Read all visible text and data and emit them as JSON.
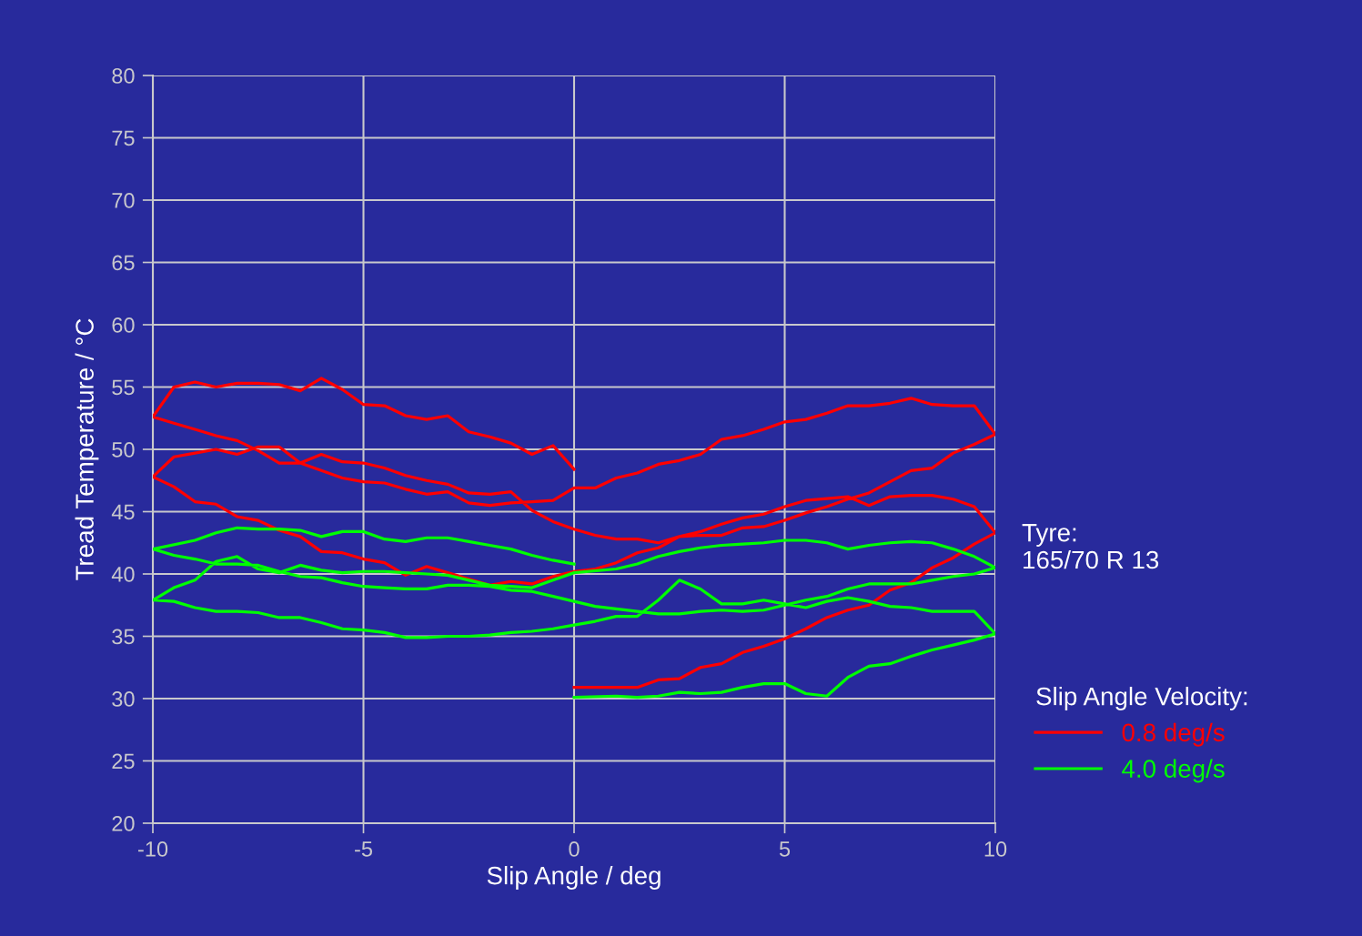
{
  "chart_data": {
    "type": "line",
    "xlabel": "Slip Angle / deg",
    "ylabel": "Tread Temperature / °C",
    "legend_title": "Slip Angle Velocity:",
    "legend": "right",
    "grid": true,
    "marker": "none",
    "line_style": "solid",
    "xlim": [
      -10,
      10
    ],
    "ylim": [
      20,
      80
    ],
    "xticks": [
      -10,
      -5,
      0,
      5,
      10
    ],
    "yticks": [
      20,
      25,
      30,
      35,
      40,
      45,
      50,
      55,
      60,
      65,
      70,
      75,
      80
    ],
    "annotations": [
      "Tyre:\n165/70 R 13"
    ],
    "series": [
      {
        "name": "0.8 deg/s",
        "color": "#ff0000",
        "x": [
          0,
          1,
          1.5,
          2,
          2.5,
          3,
          3.5,
          4,
          4.5,
          5,
          5.5,
          6,
          6.5,
          7,
          7.5,
          8,
          8.5,
          9,
          9.5,
          10,
          9.5,
          9,
          8.5,
          8,
          7.5,
          7,
          6.5,
          5.5,
          5,
          4.5,
          4,
          3.5,
          3,
          2.5,
          2,
          1.5,
          1,
          0.5,
          0,
          -0.5,
          -1,
          -1.5,
          -2,
          -2.5,
          -3,
          -3.5,
          -4,
          -4.5,
          -5,
          -5.5,
          -6,
          -6.5,
          -7,
          -7.5,
          -8,
          -8.5,
          -9,
          -9.5,
          -10,
          -9.5,
          -9,
          -8.5,
          -8,
          -7.5,
          -7,
          -6.5,
          -6,
          -5.5,
          -5,
          -4.5,
          -4,
          -3.5,
          -3,
          -2.5,
          -2,
          -1.5,
          -1,
          -0.5,
          0,
          0.5,
          1,
          1.5,
          2,
          2.5,
          3,
          3.5,
          4,
          4.5,
          5,
          5.5,
          6,
          6.5,
          7,
          7.5,
          8,
          8.5,
          9,
          9.5,
          10,
          9.5,
          9,
          8.5,
          8,
          7.5,
          7,
          6.5,
          6,
          5.5,
          5,
          4.5,
          4,
          3.5,
          3,
          2.5,
          2,
          1.5,
          1,
          0.5,
          0,
          -0.5,
          -1,
          -1.5,
          -2,
          -2.5,
          -3,
          -3.5,
          -4,
          -4.5,
          -5,
          -5.5,
          -6,
          -6.5,
          -7,
          -7.5,
          -8,
          -8.5,
          -9,
          -9.5,
          -10,
          -9.5,
          -9,
          -8.5,
          -8,
          -7.5,
          -7,
          -6.5,
          -6,
          -5.5,
          -5,
          -4.5,
          -4,
          -3.5,
          -3,
          -2.5,
          -2,
          -1.5,
          -1,
          -0.5,
          0
        ],
        "values": [
          30.9,
          30.9,
          30.9,
          31.5,
          31.6,
          32.5,
          32.8,
          33.7,
          34.2,
          34.8,
          35.6,
          36.5,
          37.1,
          37.5,
          38.7,
          39.3,
          40.5,
          41.3,
          42.4,
          43.3,
          45.4,
          46.0,
          46.3,
          46.3,
          46.2,
          45.5,
          46.2,
          45.9,
          45.4,
          44.8,
          44.5,
          44.0,
          43.4,
          43.0,
          42.1,
          41.7,
          40.9,
          40.4,
          40.2,
          39.8,
          39.2,
          39.4,
          39.1,
          39.6,
          40.1,
          40.6,
          39.9,
          40.9,
          41.2,
          41.7,
          41.8,
          43.0,
          43.5,
          44.3,
          44.6,
          45.6,
          45.8,
          47.0,
          47.8,
          49.4,
          49.7,
          50.0,
          49.6,
          50.2,
          50.2,
          48.9,
          49.6,
          49.0,
          48.9,
          48.5,
          47.9,
          47.5,
          47.2,
          46.5,
          46.4,
          46.6,
          45.1,
          44.2,
          43.6,
          43.1,
          42.8,
          42.8,
          42.5,
          43.0,
          43.1,
          43.1,
          43.7,
          43.8,
          44.3,
          44.9,
          45.4,
          46.0,
          46.5,
          47.4,
          48.3,
          48.5,
          49.7,
          50.4,
          51.2,
          53.5,
          53.5,
          53.6,
          54.1,
          53.7,
          53.5,
          53.5,
          52.9,
          52.4,
          52.2,
          51.6,
          51.1,
          50.8,
          49.6,
          49.1,
          48.8,
          48.1,
          47.7,
          46.9,
          46.9,
          45.9,
          45.8,
          45.7,
          45.5,
          45.7,
          46.6,
          46.4,
          46.8,
          47.3,
          47.4,
          47.7,
          48.3,
          48.9,
          48.9,
          49.9,
          50.7,
          51.1,
          51.6,
          52.1,
          52.6,
          55.0,
          55.4,
          55.0,
          55.3,
          55.3,
          55.2,
          54.7,
          55.7,
          54.8,
          53.6,
          53.5,
          52.7,
          52.4,
          52.7,
          51.4,
          51.0,
          50.5,
          49.6,
          50.3,
          48.4
        ]
      },
      {
        "name": "4.0 deg/s",
        "color": "#00ff00",
        "x": [
          0,
          1,
          1.5,
          2,
          2.5,
          3,
          3.5,
          4,
          4.5,
          5,
          5.5,
          6,
          6.5,
          7,
          7.5,
          8,
          8.5,
          9,
          9.5,
          10,
          9.5,
          9,
          8.5,
          8,
          7.5,
          7,
          6.5,
          6,
          5.5,
          5,
          4.5,
          4,
          3.5,
          3,
          2.5,
          2,
          1.5,
          1,
          0.5,
          0,
          -0.5,
          -1,
          -1.5,
          -2,
          -2.5,
          -3,
          -3.5,
          -4,
          -4.5,
          -5,
          -5.5,
          -6,
          -6.5,
          -7,
          -7.5,
          -8,
          -8.5,
          -9,
          -9.5,
          -10,
          -9.5,
          -9,
          -8.5,
          -8,
          -7.5,
          -7,
          -6.5,
          -6,
          -5.5,
          -5,
          -4.5,
          -4,
          -3.5,
          -3,
          -2.5,
          -2,
          -1.5,
          -1,
          -0.5,
          0,
          1,
          1.5,
          2,
          2.5,
          3,
          3.5,
          4,
          4.5,
          5,
          5.5,
          6,
          6.5,
          7,
          7.5,
          8,
          8.5,
          9,
          9.5,
          10,
          9.5,
          9,
          8.5,
          8,
          7.5,
          7,
          6.5,
          6,
          5.5,
          5,
          4.5,
          4,
          3.5,
          3,
          2.5,
          2,
          1.5,
          1,
          0.5,
          0,
          -0.5,
          -1,
          -1.5,
          -2,
          -2.5,
          -3,
          -3.5,
          -4,
          -4.5,
          -5,
          -5.5,
          -6,
          -6.5,
          -7,
          -7.5,
          -8,
          -8.5,
          -9,
          -9.5,
          -10,
          -9,
          -8.5,
          -8,
          -7.5,
          -7,
          -6.5,
          -6,
          -5.5,
          -5,
          -4.5,
          -4,
          -3.5,
          -3,
          -2.5,
          -2,
          -1.5,
          -1,
          -0.5,
          0
        ],
        "values": [
          30.1,
          30.2,
          30.1,
          30.2,
          30.5,
          30.4,
          30.5,
          30.9,
          31.2,
          31.2,
          30.4,
          30.2,
          31.7,
          32.6,
          32.8,
          33.4,
          33.9,
          34.3,
          34.7,
          35.2,
          37.0,
          37.0,
          37.0,
          37.3,
          37.4,
          37.8,
          38.1,
          37.8,
          37.3,
          37.6,
          37.9,
          37.6,
          37.6,
          38.8,
          39.5,
          37.9,
          36.6,
          36.6,
          36.2,
          35.9,
          35.6,
          35.4,
          35.3,
          35.1,
          35.0,
          35.0,
          34.9,
          34.9,
          35.3,
          35.5,
          35.6,
          36.1,
          36.5,
          36.5,
          36.9,
          37.0,
          37.0,
          37.3,
          37.8,
          37.9,
          38.9,
          39.5,
          41.0,
          41.4,
          40.4,
          40.1,
          40.7,
          40.3,
          40.1,
          40.2,
          40.2,
          40.1,
          40.0,
          39.9,
          39.5,
          39.1,
          39.0,
          38.9,
          39.5,
          40.1,
          40.4,
          40.8,
          41.4,
          41.8,
          42.1,
          42.3,
          42.4,
          42.5,
          42.7,
          42.7,
          42.5,
          42.0,
          42.3,
          42.5,
          42.6,
          42.5,
          42.0,
          41.4,
          40.5,
          40.0,
          39.8,
          39.5,
          39.2,
          39.2,
          39.2,
          38.8,
          38.2,
          37.9,
          37.5,
          37.1,
          37.0,
          37.1,
          37.0,
          36.8,
          36.8,
          37.0,
          37.2,
          37.4,
          37.8,
          38.2,
          38.6,
          38.7,
          39.0,
          39.1,
          39.1,
          38.8,
          38.8,
          38.9,
          39.0,
          39.3,
          39.7,
          39.8,
          40.2,
          40.7,
          40.8,
          40.8,
          41.2,
          41.5,
          42.0,
          42.7,
          43.3,
          43.7,
          43.6,
          43.6,
          43.5,
          43.0,
          43.4,
          43.4,
          42.8,
          42.6,
          42.9,
          42.9,
          42.6,
          42.3,
          42.0,
          41.5,
          41.1,
          40.8
        ]
      }
    ]
  }
}
